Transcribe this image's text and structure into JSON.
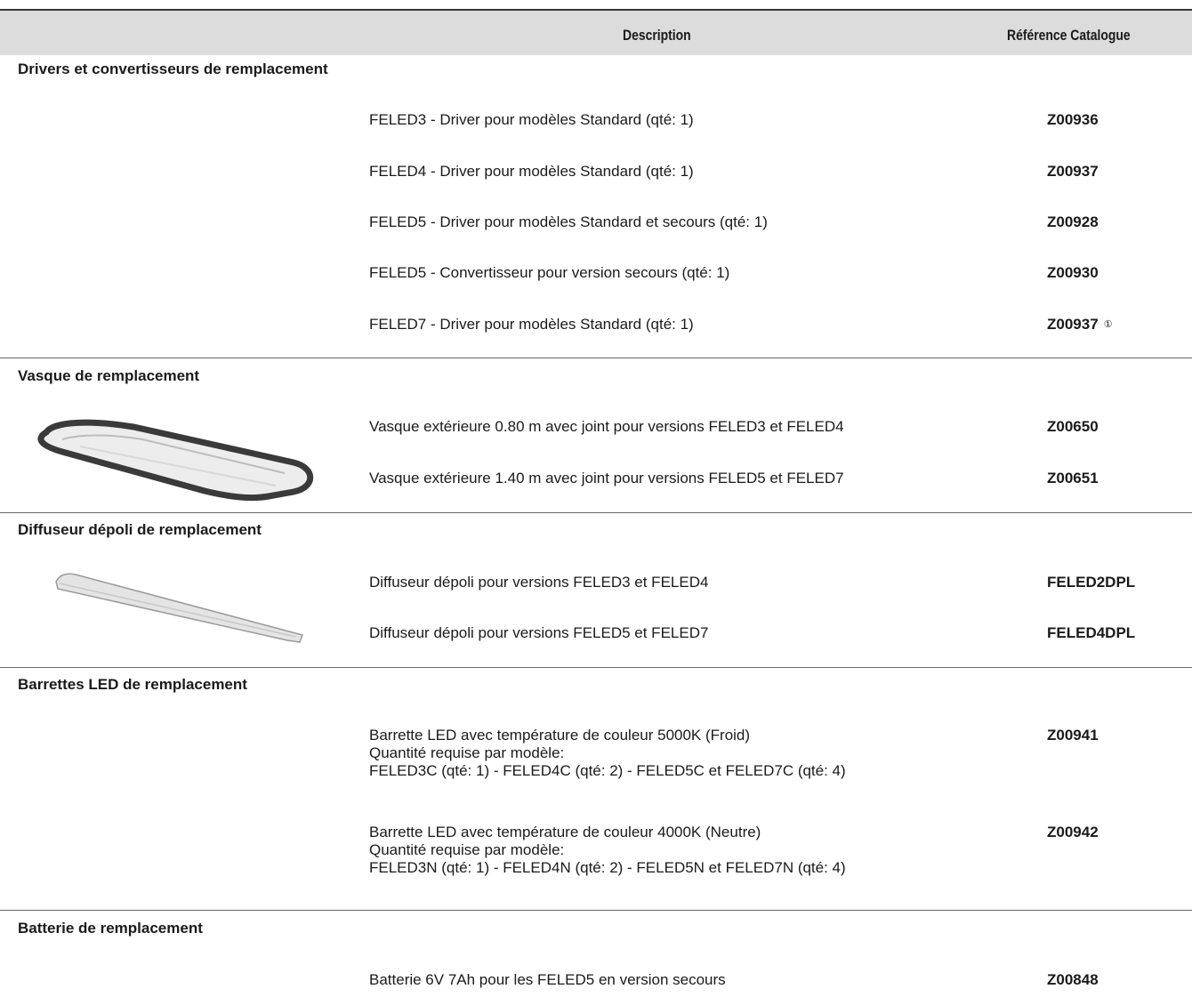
{
  "header": {
    "description_label": "Description",
    "reference_label": "Référence Catalogue"
  },
  "sections": [
    {
      "title": "Drivers et convertisseurs de remplacement",
      "items": [
        {
          "description": "FELED3 - Driver pour modèles Standard (qté: 1)",
          "reference": "Z00936"
        },
        {
          "description": "FELED4 - Driver pour modèles Standard (qté: 1)",
          "reference": "Z00937"
        },
        {
          "description": "FELED5 - Driver pour modèles Standard et secours (qté: 1)",
          "reference": "Z00928"
        },
        {
          "description": "FELED5 - Convertisseur pour version secours (qté: 1)",
          "reference": "Z00930"
        },
        {
          "description": "FELED7 - Driver pour modèles Standard (qté: 1)",
          "reference": "Z00937",
          "note_mark": "①"
        }
      ]
    },
    {
      "title": "Vasque de remplacement",
      "image": "vasque-illustration",
      "items": [
        {
          "description": "Vasque extérieure 0.80 m avec joint pour versions FELED3 et FELED4",
          "reference": "Z00650"
        },
        {
          "description": "Vasque extérieure 1.40 m avec joint pour versions FELED5 et FELED7",
          "reference": "Z00651"
        }
      ]
    },
    {
      "title": "Diffuseur dépoli de remplacement",
      "image": "diffuseur-illustration",
      "items": [
        {
          "description": "Diffuseur dépoli pour versions FELED3 et FELED4",
          "reference": "FELED2DPL"
        },
        {
          "description": "Diffuseur dépoli pour versions FELED5 et FELED7",
          "reference": "FELED4DPL"
        }
      ]
    },
    {
      "title": "Barrettes LED de remplacement",
      "items": [
        {
          "description_lines": [
            "Barrette LED avec température de couleur 5000K (Froid)",
            "Quantité requise par modèle:",
            "FELED3C (qté: 1) - FELED4C (qté: 2) - FELED5C et FELED7C (qté: 4)"
          ],
          "reference": "Z00941"
        },
        {
          "description_lines": [
            "Barrette LED avec température de couleur 4000K (Neutre)",
            "Quantité requise par modèle:",
            "FELED3N (qté: 1) - FELED4N (qté: 2) - FELED5N et FELED7N (qté: 4)"
          ],
          "reference": "Z00942"
        }
      ]
    },
    {
      "title": "Batterie de remplacement",
      "items": [
        {
          "description": "Batterie 6V 7Ah pour les FELED5 en version secours",
          "reference": "Z00848"
        }
      ]
    }
  ]
}
